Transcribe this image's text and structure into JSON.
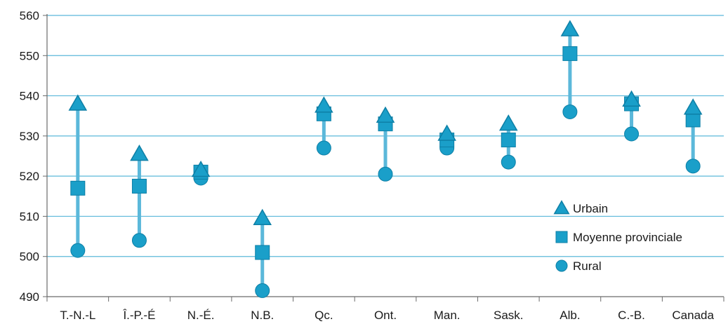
{
  "chart_data": {
    "type": "scatter",
    "title": "",
    "xlabel": "",
    "ylabel": "",
    "ylim": [
      490,
      560
    ],
    "yticks": [
      490,
      500,
      510,
      520,
      530,
      540,
      550,
      560
    ],
    "grid": true,
    "legend_position": "bottom-right",
    "categories": [
      "T.-N.-L",
      "Î.-P.-É",
      "N.-É.",
      "N.B.",
      "Qc.",
      "Ont.",
      "Man.",
      "Sask.",
      "Alb.",
      "C.-B.",
      "Canada"
    ],
    "series": [
      {
        "name": "Urbain",
        "marker": "triangle",
        "values": [
          538,
          525.5,
          521.5,
          509.5,
          537.5,
          535,
          530.5,
          533,
          556.5,
          539,
          537
        ]
      },
      {
        "name": "Moyenne provinciale",
        "marker": "square",
        "values": [
          517,
          517.5,
          521,
          501,
          535.5,
          533,
          529,
          529,
          550.5,
          538,
          534
        ]
      },
      {
        "name": "Rural",
        "marker": "circle",
        "values": [
          501.5,
          504,
          519.5,
          491.5,
          527,
          520.5,
          527,
          523.5,
          536,
          530.5,
          522.5
        ]
      }
    ],
    "colors": {
      "marker_fill": "#1a9fc9",
      "marker_stroke": "#0d7fa6",
      "range_bar": "#5bb8da",
      "gridline": "#5bb8da",
      "axis": "#6a6a6a"
    }
  }
}
